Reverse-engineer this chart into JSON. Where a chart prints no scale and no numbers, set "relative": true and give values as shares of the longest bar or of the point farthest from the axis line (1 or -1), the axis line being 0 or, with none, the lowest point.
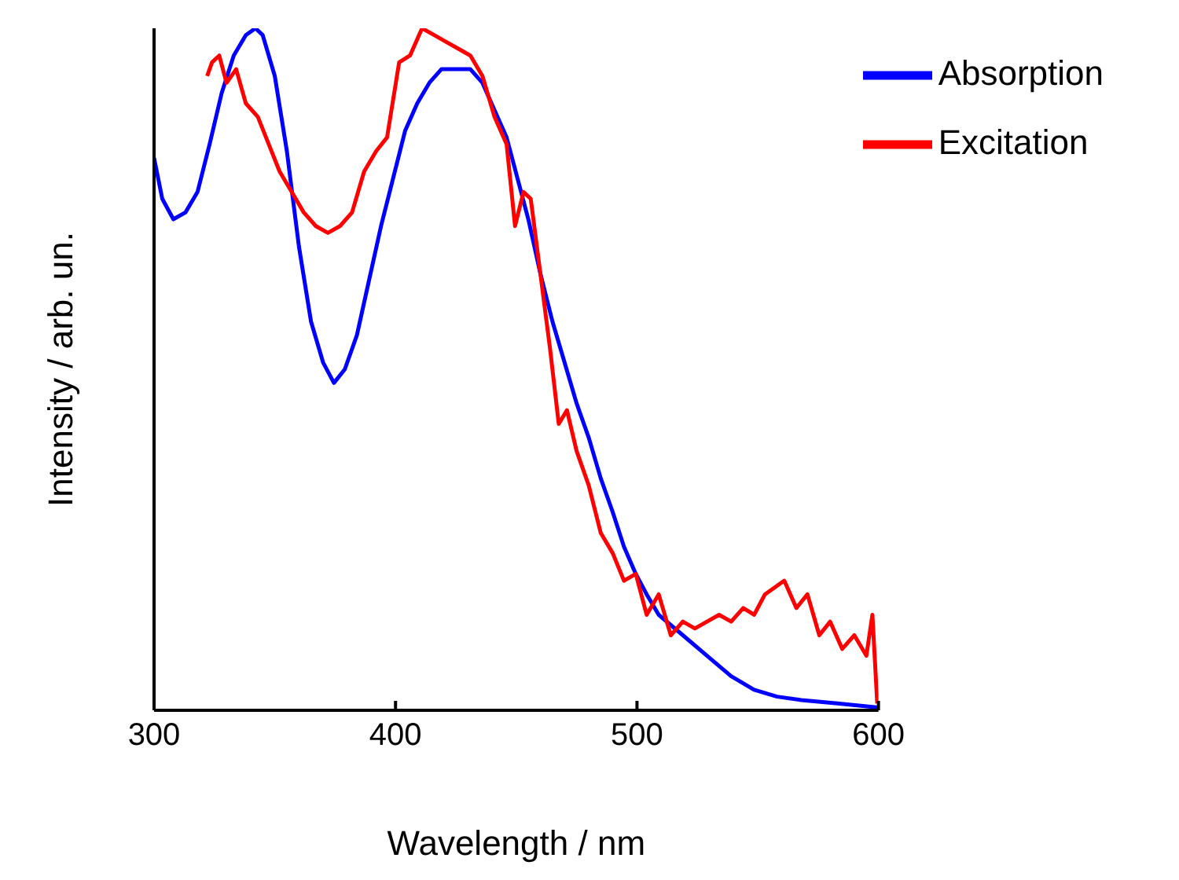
{
  "chart_data": {
    "type": "line",
    "xlabel": "Wavelength / nm",
    "ylabel": "Intensity / arb. un.",
    "relative": true,
    "xlim": [
      300,
      600
    ],
    "xticks": [
      300,
      400,
      500,
      600
    ],
    "legend": "top right",
    "grid": false,
    "marker": "none",
    "line_style": "solid",
    "series": [
      {
        "name": "Absorption",
        "color": "#0000ff",
        "x": [
          300,
          303.4,
          308,
          313,
          318,
          323,
          328,
          333,
          338,
          342,
          345,
          350,
          355,
          360,
          365,
          370,
          374.5,
          379,
          384,
          389,
          394,
          399,
          404,
          409,
          414,
          419,
          426,
          431,
          436,
          441,
          446,
          450.5,
          455,
          460,
          465,
          470,
          475,
          480,
          485,
          490,
          494.6,
          499.5,
          504,
          509,
          519,
          529,
          539,
          548.5,
          558,
          568,
          583,
          600
        ],
        "values": [
          0.81,
          0.75,
          0.72,
          0.73,
          0.76,
          0.83,
          0.905,
          0.96,
          0.99,
          1.0,
          0.99,
          0.93,
          0.82,
          0.68,
          0.57,
          0.51,
          0.48,
          0.5,
          0.55,
          0.63,
          0.71,
          0.78,
          0.85,
          0.89,
          0.92,
          0.94,
          0.94,
          0.94,
          0.92,
          0.88,
          0.84,
          0.78,
          0.72,
          0.64,
          0.57,
          0.51,
          0.45,
          0.4,
          0.34,
          0.29,
          0.24,
          0.2,
          0.17,
          0.14,
          0.11,
          0.08,
          0.05,
          0.03,
          0.02,
          0.015,
          0.01,
          0.004
        ]
      },
      {
        "name": "Excitation",
        "color": "#ff0000",
        "x": [
          322,
          324,
          327,
          330,
          334,
          338,
          343,
          347.5,
          352,
          357,
          362,
          367,
          372,
          377,
          382,
          387,
          392,
          396.5,
          401.5,
          406,
          411,
          416,
          421,
          426,
          431,
          436,
          441,
          446,
          449.5,
          453,
          456,
          460,
          464,
          467.6,
          471,
          475,
          480,
          485,
          490,
          494.6,
          499.5,
          504,
          509,
          514,
          519,
          524,
          529,
          534,
          539,
          544,
          548.5,
          553,
          561,
          566,
          570.6,
          575.5,
          580,
          585,
          590,
          595,
          597.5,
          599.5
        ],
        "values": [
          0.93,
          0.95,
          0.96,
          0.92,
          0.94,
          0.89,
          0.87,
          0.83,
          0.79,
          0.76,
          0.73,
          0.71,
          0.7,
          0.71,
          0.73,
          0.79,
          0.82,
          0.84,
          0.95,
          0.96,
          1.0,
          0.99,
          0.98,
          0.97,
          0.96,
          0.93,
          0.87,
          0.83,
          0.71,
          0.76,
          0.75,
          0.64,
          0.53,
          0.42,
          0.44,
          0.38,
          0.33,
          0.26,
          0.23,
          0.19,
          0.2,
          0.14,
          0.17,
          0.11,
          0.13,
          0.12,
          0.13,
          0.14,
          0.13,
          0.15,
          0.14,
          0.17,
          0.19,
          0.15,
          0.17,
          0.11,
          0.13,
          0.09,
          0.11,
          0.08,
          0.14,
          0.01
        ]
      }
    ]
  }
}
